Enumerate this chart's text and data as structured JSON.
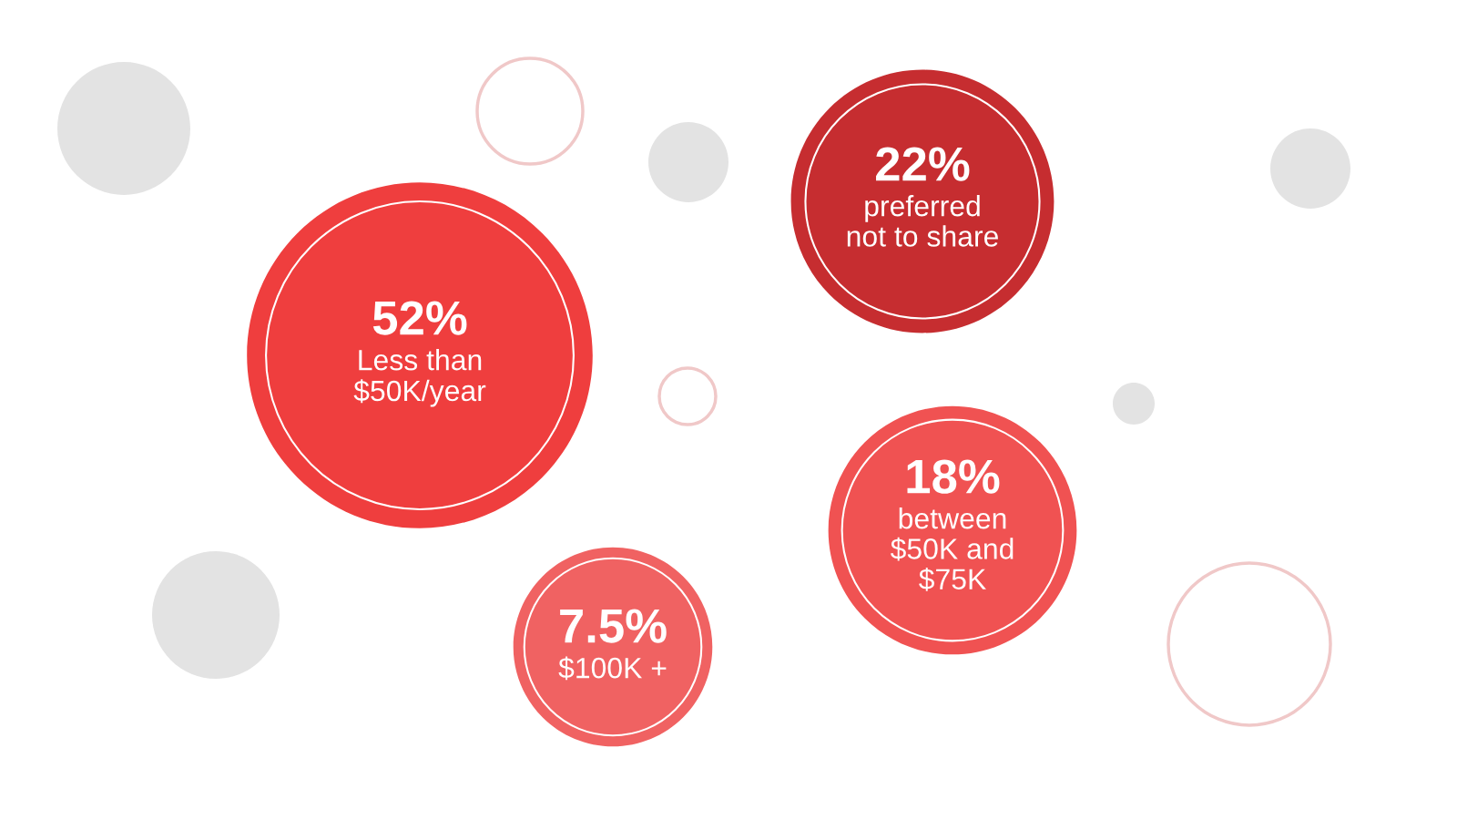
{
  "chart_data": {
    "type": "other",
    "categories": [
      "Less than\n$50K/year",
      "preferred\nnot to share",
      "between\n$50K and\n$75K",
      "$100K +"
    ],
    "values": [
      52,
      22,
      18,
      7.5
    ],
    "value_labels": [
      "52%",
      "22%",
      "18%",
      "7.5%"
    ],
    "colors": [
      "#ef3e3e",
      "#c62d30",
      "#f05252",
      "#f06262"
    ]
  }
}
